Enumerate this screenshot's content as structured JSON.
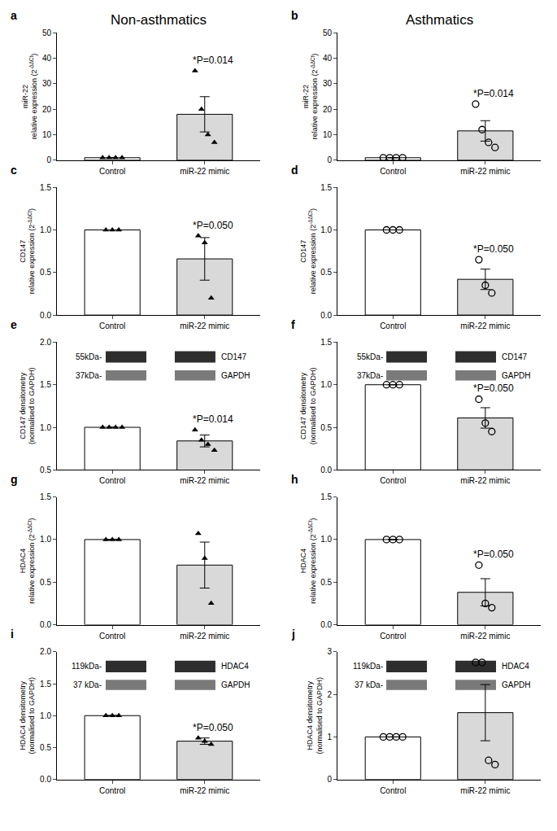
{
  "chart_data": [
    {
      "type": "bar",
      "panel": "a",
      "title": "Non-asthmatics",
      "categories": [
        "Control",
        "miR-22 mimic"
      ],
      "values": [
        1,
        18
      ],
      "error": [
        0,
        6.9
      ],
      "points": {
        "values": [
          [
            1,
            1,
            1,
            1
          ],
          [
            35,
            20,
            10,
            7
          ]
        ],
        "marker": "triangle",
        "color": "#000000"
      },
      "colors": [
        "#ffffff",
        "#d9d9d9"
      ],
      "y_label": {
        "lines": [
          "miR-22",
          "relative expression (2"
        ],
        "sup": "-ΔΔCt",
        "after": ")"
      },
      "ylim": [
        0,
        50
      ],
      "yticks": [
        0,
        10,
        20,
        30,
        40,
        50
      ],
      "grid": false,
      "annotations": [
        "*P=0.014"
      ]
    },
    {
      "type": "bar",
      "panel": "b",
      "title": "Asthmatics",
      "categories": [
        "Control",
        "miR-22 mimic"
      ],
      "values": [
        1,
        11.5
      ],
      "error": [
        0,
        4
      ],
      "points": {
        "values": [
          [
            1,
            1,
            1,
            1
          ],
          [
            22,
            12,
            7,
            5
          ]
        ],
        "marker": "open circle",
        "color": "#000000"
      },
      "colors": [
        "#ffffff",
        "#d9d9d9"
      ],
      "y_label": {
        "lines": [
          "miR-22",
          "relative expression (2"
        ],
        "sup": "-ΔΔCt",
        "after": ")"
      },
      "ylim": [
        0,
        50
      ],
      "yticks": [
        0,
        10,
        20,
        30,
        40,
        50
      ],
      "grid": false,
      "annotations": [
        "*P=0.014"
      ]
    },
    {
      "type": "bar",
      "panel": "c",
      "categories": [
        "Control",
        "miR-22 mimic"
      ],
      "values": [
        1,
        0.66
      ],
      "error": [
        0,
        0.25
      ],
      "points": {
        "values": [
          [
            1,
            1,
            1
          ],
          [
            0.93,
            0.85,
            0.2
          ]
        ],
        "marker": "triangle",
        "color": "#000000"
      },
      "colors": [
        "#ffffff",
        "#d9d9d9"
      ],
      "y_label": {
        "lines": [
          "CD147",
          "relative expression (2"
        ],
        "sup": "-ΔΔCt",
        "after": ")"
      },
      "ylim": [
        0,
        1.5
      ],
      "yticks": [
        {
          "value": 0,
          "label": "0.0"
        },
        0.5,
        {
          "value": 1,
          "label": "1.0"
        },
        1.5
      ],
      "grid": false,
      "annotations": [
        "*P=0.050"
      ]
    },
    {
      "type": "bar",
      "panel": "d",
      "categories": [
        "Control",
        "miR-22 mimic"
      ],
      "values": [
        1,
        0.42
      ],
      "error": [
        0,
        0.12
      ],
      "points": {
        "values": [
          [
            1,
            1,
            1
          ],
          [
            0.65,
            0.35,
            0.26
          ]
        ],
        "marker": "open circle",
        "color": "#000000"
      },
      "colors": [
        "#ffffff",
        "#d9d9d9"
      ],
      "y_label": {
        "lines": [
          "CD147",
          "relative expression (2"
        ],
        "sup": "-ΔΔCt",
        "after": ")"
      },
      "ylim": [
        0,
        1.5
      ],
      "yticks": [
        {
          "value": 0,
          "label": "0.0"
        },
        0.5,
        {
          "value": 1,
          "label": "1.0"
        },
        1.5
      ],
      "grid": false,
      "annotations": [
        "*P=0.050"
      ]
    },
    {
      "type": "bar",
      "panel": "e",
      "categories": [
        "Control",
        "miR-22 mimic"
      ],
      "values": [
        1,
        0.84
      ],
      "error": [
        0,
        0.07
      ],
      "points": {
        "values": [
          [
            1,
            1,
            1,
            1
          ],
          [
            0.97,
            0.85,
            0.8,
            0.73
          ]
        ],
        "marker": "triangle",
        "color": "#000000"
      },
      "colors": [
        "#ffffff",
        "#d9d9d9"
      ],
      "y_label": {
        "lines": [
          "CD147 densitometry",
          "(normalised to GAPDH)"
        ]
      },
      "ylim": [
        0.5,
        2
      ],
      "yticks": [
        0.5,
        {
          "value": 1,
          "label": "1.0"
        },
        1.5,
        {
          "value": 2,
          "label": "2.0"
        }
      ],
      "grid": false,
      "annotations": [
        "*P=0.014"
      ],
      "blot": [
        {
          "size": "55kDa-",
          "protein": "CD147"
        },
        {
          "size": "37kDa-",
          "protein": "GAPDH"
        }
      ]
    },
    {
      "type": "bar",
      "panel": "f",
      "categories": [
        "Control",
        "miR-22 mimic"
      ],
      "values": [
        1,
        0.61
      ],
      "error": [
        0,
        0.12
      ],
      "points": {
        "values": [
          [
            1,
            1,
            1
          ],
          [
            0.83,
            0.55,
            0.45
          ]
        ],
        "marker": "open circle",
        "color": "#000000"
      },
      "colors": [
        "#ffffff",
        "#d9d9d9"
      ],
      "y_label": {
        "lines": [
          "CD147 densitometry",
          "(normalised to GAPDH)"
        ]
      },
      "ylim": [
        0,
        1.5
      ],
      "yticks": [
        {
          "value": 0,
          "label": "0.0"
        },
        0.5,
        {
          "value": 1,
          "label": "1.0"
        },
        1.5
      ],
      "grid": false,
      "annotations": [
        "*P=0.050"
      ],
      "blot": [
        {
          "size": "55kDa-",
          "protein": "CD147"
        },
        {
          "size": "37kDa-",
          "protein": "GAPDH"
        }
      ]
    },
    {
      "type": "bar",
      "panel": "g",
      "categories": [
        "Control",
        "miR-22 mimic"
      ],
      "values": [
        1,
        0.7
      ],
      "error": [
        0,
        0.27
      ],
      "points": {
        "values": [
          [
            1,
            1,
            1
          ],
          [
            1.07,
            0.78,
            0.25
          ]
        ],
        "marker": "triangle",
        "color": "#000000"
      },
      "colors": [
        "#ffffff",
        "#d9d9d9"
      ],
      "y_label": {
        "lines": [
          "HDAC4",
          "relative expression (2"
        ],
        "sup": "-ΔΔCt",
        "after": ")"
      },
      "ylim": [
        0,
        1.5
      ],
      "yticks": [
        {
          "value": 0,
          "label": "0.0"
        },
        0.5,
        {
          "value": 1,
          "label": "1.0"
        },
        1.5
      ],
      "grid": false,
      "annotations": []
    },
    {
      "type": "bar",
      "panel": "h",
      "categories": [
        "Control",
        "miR-22 mimic"
      ],
      "values": [
        1,
        0.38
      ],
      "error": [
        0,
        0.16
      ],
      "points": {
        "values": [
          [
            1,
            1,
            1
          ],
          [
            0.7,
            0.25,
            0.2
          ]
        ],
        "marker": "open circle",
        "color": "#000000"
      },
      "colors": [
        "#ffffff",
        "#d9d9d9"
      ],
      "y_label": {
        "lines": [
          "HDAC4",
          "relative expression (2"
        ],
        "sup": "-ΔΔCt",
        "after": ")"
      },
      "ylim": [
        0,
        1.5
      ],
      "yticks": [
        {
          "value": 0,
          "label": "0.0"
        },
        0.5,
        {
          "value": 1,
          "label": "1.0"
        },
        1.5
      ],
      "grid": false,
      "annotations": [
        "*P=0.050"
      ]
    },
    {
      "type": "bar",
      "panel": "i",
      "categories": [
        "Control",
        "miR-22 mimic"
      ],
      "values": [
        1,
        0.6
      ],
      "error": [
        0,
        0.05
      ],
      "points": {
        "values": [
          [
            1,
            1,
            1
          ],
          [
            0.65,
            0.6,
            0.55
          ]
        ],
        "marker": "triangle",
        "color": "#000000"
      },
      "colors": [
        "#ffffff",
        "#d9d9d9"
      ],
      "y_label": {
        "lines": [
          "HDAC4 densitometry",
          "(normalised to GAPDH)"
        ]
      },
      "ylim": [
        0,
        2
      ],
      "yticks": [
        {
          "value": 0,
          "label": "0.0"
        },
        0.5,
        {
          "value": 1,
          "label": "1.0"
        },
        1.5,
        {
          "value": 2,
          "label": "2.0"
        }
      ],
      "grid": false,
      "annotations": [
        "*P=0.050"
      ],
      "blot": [
        {
          "size": "119kDa-",
          "protein": "HDAC4"
        },
        {
          "size": "37 kDa-",
          "protein": "GAPDH"
        }
      ]
    },
    {
      "type": "bar",
      "panel": "j",
      "categories": [
        "Control",
        "miR-22 mimic"
      ],
      "values": [
        1,
        1.57
      ],
      "error": [
        0,
        0.66
      ],
      "points": {
        "values": [
          [
            1,
            1,
            1,
            1
          ],
          [
            2.75,
            2.75,
            0.45,
            0.35
          ]
        ],
        "marker": "open circle",
        "color": "#000000"
      },
      "colors": [
        "#ffffff",
        "#d9d9d9"
      ],
      "y_label": {
        "lines": [
          "HDAC4 densitometry",
          "(normalised to GAPDH)"
        ]
      },
      "ylim": [
        0,
        3
      ],
      "yticks": [
        0,
        1,
        2,
        3
      ],
      "grid": false,
      "annotations": [],
      "blot": [
        {
          "size": "119kDa-",
          "protein": "HDAC4"
        },
        {
          "size": "37 kDa-",
          "protein": "GAPDH"
        }
      ]
    }
  ]
}
